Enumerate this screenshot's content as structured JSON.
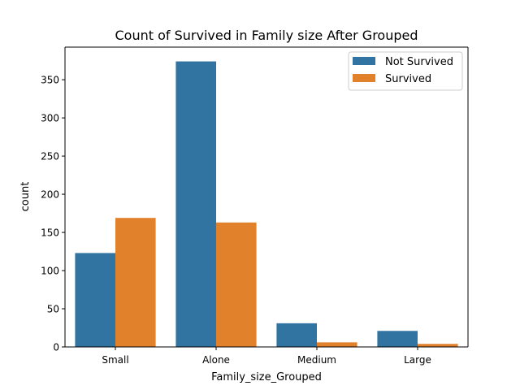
{
  "chart_data": {
    "type": "bar",
    "title": "Count of Survived in Family size After Grouped",
    "xlabel": "Family_size_Grouped",
    "ylabel": "count",
    "categories": [
      "Small",
      "Alone",
      "Medium",
      "Large"
    ],
    "series": [
      {
        "name": "Not Survived",
        "color": "#3274a1",
        "values": [
          123,
          374,
          31,
          21
        ]
      },
      {
        "name": "Survived",
        "color": "#e1812c",
        "values": [
          169,
          163,
          6,
          4
        ]
      }
    ],
    "ylim": [
      0,
      392.7
    ],
    "yticks": [
      0,
      50,
      100,
      150,
      200,
      250,
      300,
      350
    ],
    "grid": false,
    "legend_position": "top-right"
  }
}
